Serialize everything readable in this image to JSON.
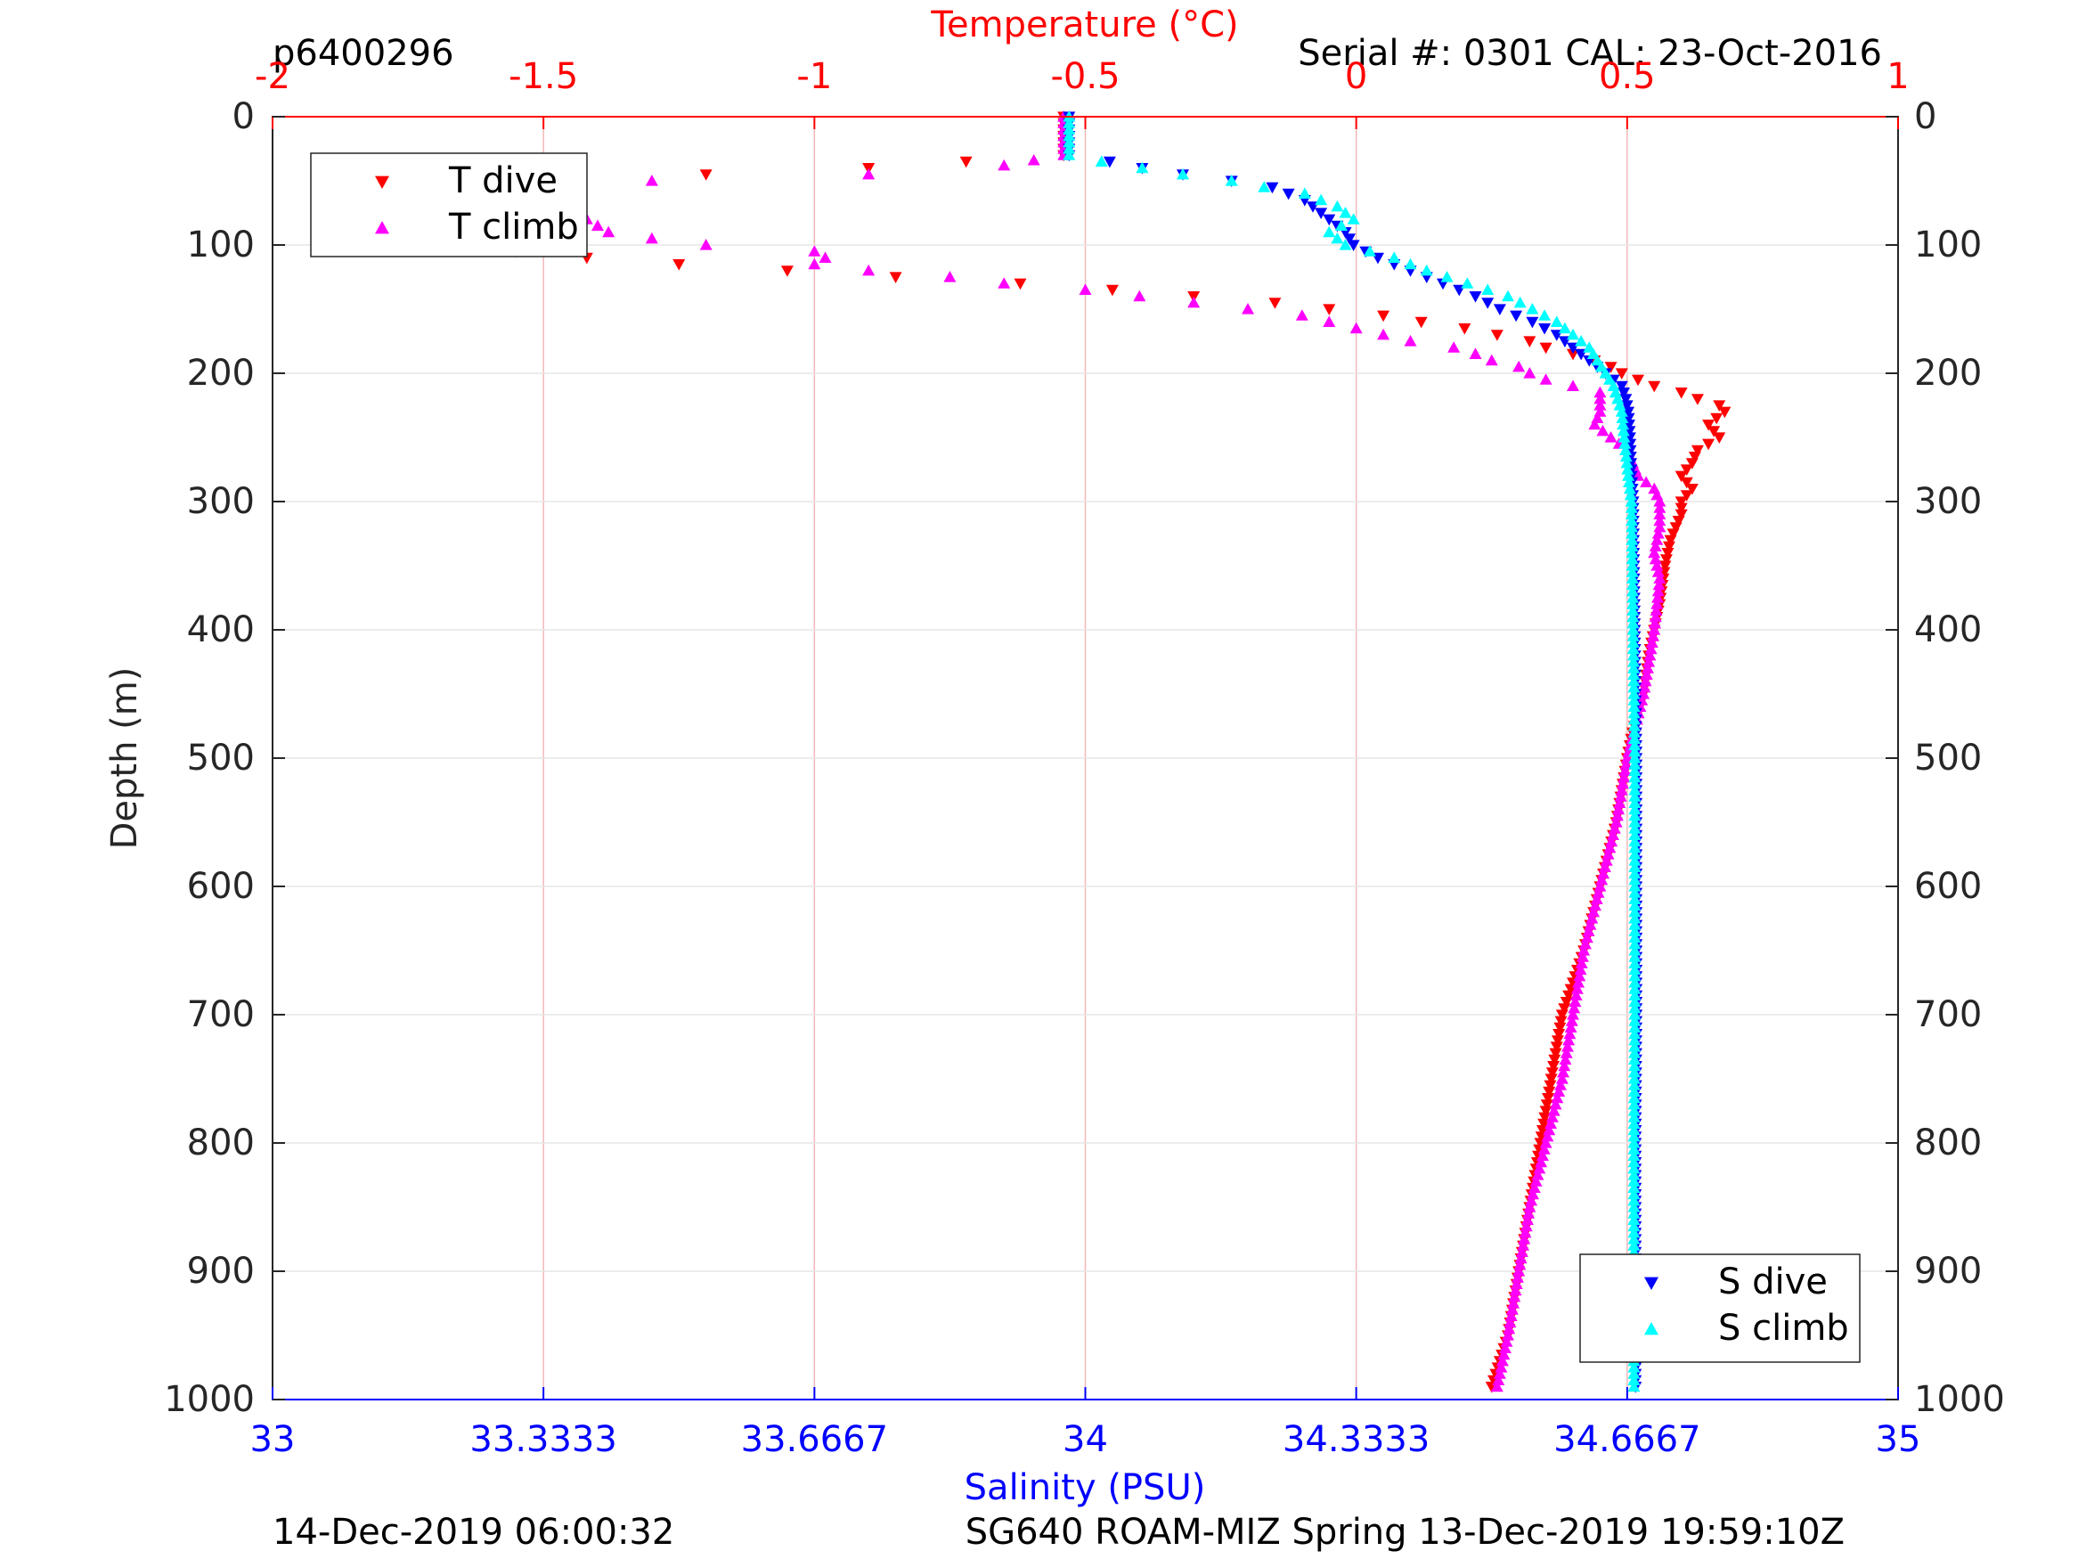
{
  "header": {
    "profile_id": "p6400296",
    "serial_cal": "Serial #: 0301  CAL: 23-Oct-2016"
  },
  "footer": {
    "timestamp": "14-Dec-2019 06:00:32",
    "mission": "SG640 ROAM-MIZ Spring 13-Dec-2019 19:59:10Z"
  },
  "colors": {
    "t_dive": "#ff0000",
    "t_climb": "#ff00ff",
    "s_dive": "#0000ff",
    "s_climb": "#00ffff",
    "temperature_axis": "#ff0000",
    "salinity_axis": "#0000ff",
    "depth_axis": "#262626"
  },
  "chart_data": {
    "type": "scatter",
    "title": "",
    "ylabel": "Depth (m)",
    "ylim": [
      0,
      1000
    ],
    "y_reversed": true,
    "yticks": [
      "0",
      "100",
      "200",
      "300",
      "400",
      "500",
      "600",
      "700",
      "800",
      "900",
      "1000"
    ],
    "y_tick_values": [
      0,
      100,
      200,
      300,
      400,
      500,
      600,
      700,
      800,
      900,
      1000
    ],
    "top_axis": {
      "label": "Temperature (°C)",
      "lim": [
        -2,
        1
      ],
      "ticks": [
        "-2",
        "-1.5",
        "-1",
        "-0.5",
        "0",
        "0.5",
        "1"
      ],
      "tick_values": [
        -2,
        -1.5,
        -1,
        -0.5,
        0,
        0.5,
        1
      ],
      "grid": true
    },
    "bottom_axis": {
      "label": "Salinity (PSU)",
      "lim": [
        33,
        35
      ],
      "ticks": [
        "33",
        "33.3333",
        "33.6667",
        "34",
        "34.3333",
        "34.6667",
        "35"
      ],
      "tick_values": [
        33,
        33.3333,
        33.6667,
        34,
        34.3333,
        34.6667,
        35
      ]
    },
    "grid": true,
    "legends": [
      {
        "placement": "top-left",
        "entries": [
          "T dive",
          "T climb"
        ]
      },
      {
        "placement": "bottom-right",
        "entries": [
          "S dive",
          "S climb"
        ]
      }
    ],
    "series": [
      {
        "name": "T dive",
        "axis": "temperature",
        "marker": "triangle-down",
        "depth": [
          0,
          30,
          40,
          45,
          50,
          55,
          60,
          65,
          70,
          75,
          80,
          85,
          90,
          95,
          100,
          105,
          110,
          115,
          120,
          125,
          130,
          135,
          140,
          145,
          150,
          155,
          160,
          165,
          170,
          175,
          180,
          185,
          190,
          195,
          200,
          205,
          210,
          215,
          220,
          225,
          230,
          240,
          250,
          260,
          270,
          280,
          290,
          300,
          310,
          330,
          350,
          380,
          400,
          420,
          450,
          480,
          500,
          550,
          600,
          650,
          700,
          750,
          800,
          850,
          900,
          950,
          990
        ],
        "temperature": [
          -0.54,
          -0.54,
          -0.9,
          -1.2,
          -1.55,
          -1.7,
          -1.85,
          -1.72,
          -1.84,
          -1.8,
          -1.82,
          -1.74,
          -1.78,
          -1.75,
          -1.68,
          -1.55,
          -1.42,
          -1.25,
          -1.05,
          -0.85,
          -0.62,
          -0.45,
          -0.3,
          -0.15,
          -0.05,
          0.05,
          0.12,
          0.2,
          0.26,
          0.32,
          0.35,
          0.4,
          0.44,
          0.47,
          0.49,
          0.52,
          0.55,
          0.6,
          0.63,
          0.67,
          0.68,
          0.65,
          0.67,
          0.63,
          0.62,
          0.6,
          0.62,
          0.6,
          0.6,
          0.58,
          0.57,
          0.56,
          0.55,
          0.54,
          0.53,
          0.51,
          0.5,
          0.48,
          0.45,
          0.42,
          0.38,
          0.36,
          0.34,
          0.32,
          0.3,
          0.28,
          0.25
        ]
      },
      {
        "name": "T climb",
        "axis": "temperature",
        "marker": "triangle-up",
        "depth": [
          0,
          30,
          38,
          45,
          50,
          55,
          60,
          65,
          70,
          75,
          80,
          85,
          90,
          95,
          100,
          105,
          110,
          115,
          120,
          125,
          130,
          135,
          140,
          145,
          150,
          155,
          160,
          165,
          170,
          175,
          180,
          185,
          190,
          195,
          200,
          205,
          210,
          215,
          230,
          240,
          250,
          260,
          280,
          290,
          300,
          320,
          340,
          360,
          400,
          450,
          500,
          550,
          600,
          650,
          700,
          750,
          800,
          850,
          900,
          950,
          990
        ],
        "temperature": [
          -0.54,
          -0.54,
          -0.65,
          -0.9,
          -1.3,
          -1.6,
          -1.75,
          -1.65,
          -1.55,
          -1.5,
          -1.42,
          -1.4,
          -1.38,
          -1.3,
          -1.2,
          -1.0,
          -0.98,
          -1.0,
          -0.9,
          -0.75,
          -0.65,
          -0.5,
          -0.4,
          -0.3,
          -0.2,
          -0.1,
          -0.05,
          0.0,
          0.05,
          0.1,
          0.18,
          0.22,
          0.25,
          0.3,
          0.32,
          0.35,
          0.4,
          0.45,
          0.45,
          0.44,
          0.47,
          0.5,
          0.52,
          0.55,
          0.56,
          0.56,
          0.55,
          0.56,
          0.55,
          0.53,
          0.5,
          0.48,
          0.45,
          0.42,
          0.4,
          0.38,
          0.35,
          0.32,
          0.3,
          0.28,
          0.26
        ]
      },
      {
        "name": "S dive",
        "axis": "salinity",
        "marker": "triangle-down",
        "depth": [
          0,
          30,
          35,
          40,
          45,
          50,
          55,
          60,
          65,
          70,
          80,
          90,
          100,
          110,
          120,
          130,
          140,
          150,
          160,
          170,
          180,
          190,
          200,
          210,
          220,
          230,
          250,
          280,
          300,
          350,
          400,
          450,
          500,
          600,
          700,
          800,
          900,
          990
        ],
        "salinity": [
          33.98,
          33.98,
          34.03,
          34.07,
          34.12,
          34.18,
          34.23,
          34.25,
          34.27,
          34.28,
          34.3,
          34.32,
          34.33,
          34.36,
          34.4,
          34.44,
          34.48,
          34.51,
          34.55,
          34.58,
          34.6,
          34.62,
          34.64,
          34.66,
          34.665,
          34.668,
          34.67,
          34.672,
          34.674,
          34.675,
          34.676,
          34.677,
          34.678,
          34.678,
          34.678,
          34.677,
          34.677,
          34.677
        ]
      },
      {
        "name": "S climb",
        "axis": "salinity",
        "marker": "triangle-up",
        "depth": [
          0,
          30,
          35,
          40,
          45,
          50,
          55,
          60,
          65,
          70,
          80,
          90,
          100,
          110,
          120,
          130,
          140,
          150,
          160,
          170,
          180,
          190,
          200,
          210,
          220,
          230,
          250,
          280,
          300,
          350,
          400,
          450,
          500,
          600,
          700,
          800,
          900,
          990
        ],
        "salinity": [
          33.98,
          33.98,
          34.02,
          34.07,
          34.12,
          34.18,
          34.22,
          34.27,
          34.29,
          34.31,
          34.33,
          34.3,
          34.32,
          34.38,
          34.42,
          34.47,
          34.52,
          34.55,
          34.58,
          34.6,
          34.62,
          34.63,
          34.64,
          34.65,
          34.655,
          34.66,
          34.663,
          34.668,
          34.672,
          34.673,
          34.674,
          34.675,
          34.676,
          34.676,
          34.676,
          34.675,
          34.675,
          34.675
        ]
      }
    ]
  }
}
